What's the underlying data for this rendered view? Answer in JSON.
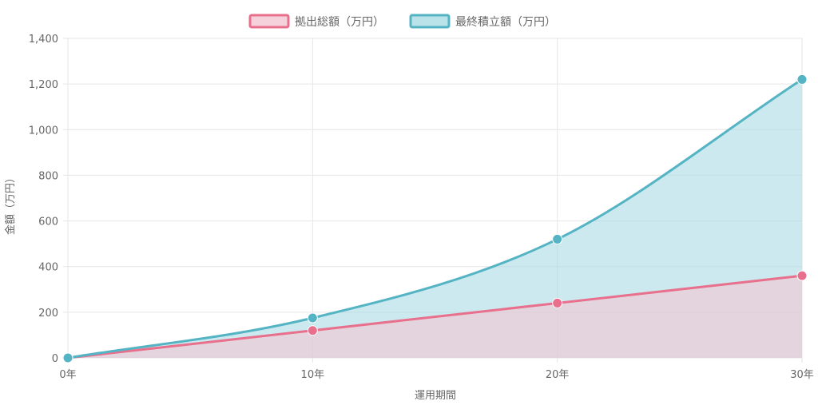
{
  "chart_data": {
    "type": "area",
    "x": [
      "0年",
      "10年",
      "20年",
      "30年"
    ],
    "series": [
      {
        "name": "拠出総額（万円）",
        "values": [
          0,
          120,
          240,
          360
        ],
        "line_color": "#e8708d",
        "fill_color": "#f3c6d2",
        "fill_opacity": 0.6
      },
      {
        "name": "最終積立額（万円）",
        "values": [
          0,
          175,
          520,
          1220
        ],
        "line_color": "#55b4c4",
        "fill_color": "#a9dbe3",
        "fill_opacity": 0.6
      }
    ],
    "xlabel": "運用期間",
    "ylabel": "金額（万円）",
    "ylim": [
      0,
      1400
    ],
    "y_ticks": [
      "0",
      "200",
      "400",
      "600",
      "800",
      "1,000",
      "1,200",
      "1,400"
    ],
    "y_tick_values": [
      0,
      200,
      400,
      600,
      800,
      1000,
      1200,
      1400
    ],
    "grid": true,
    "legend_position": "top-center"
  }
}
